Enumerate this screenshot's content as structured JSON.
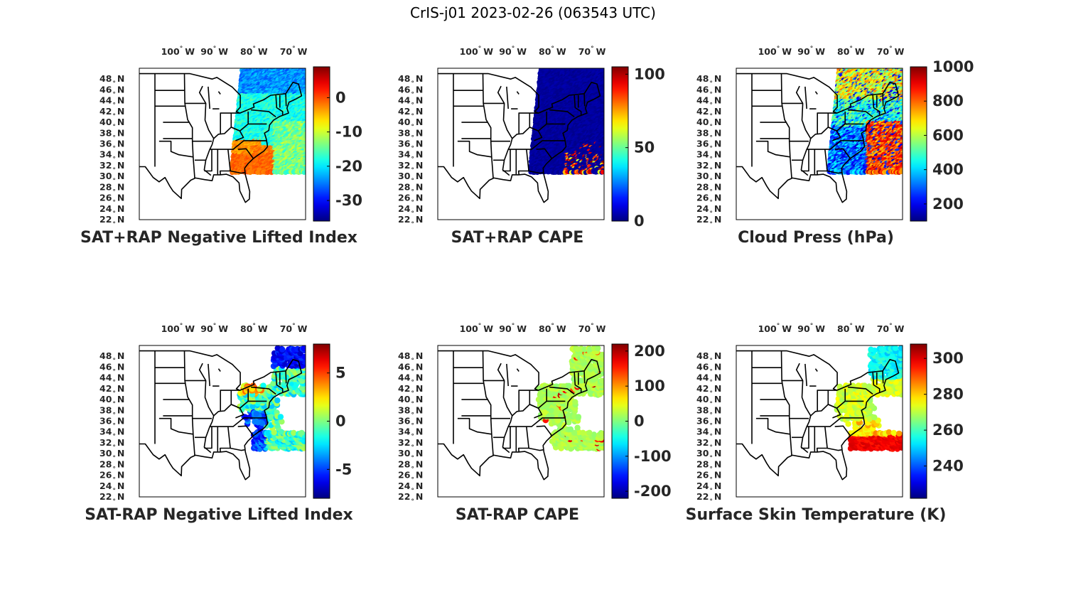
{
  "title": "CrIS-j01 2023-02-26 (063543 UTC)",
  "lon_ticks": [
    {
      "value": -100,
      "label": "100",
      "hem": "W"
    },
    {
      "value": -90,
      "label": "90",
      "hem": "W"
    },
    {
      "value": -80,
      "label": "80",
      "hem": "W"
    },
    {
      "value": -70,
      "label": "70",
      "hem": "W"
    }
  ],
  "lat_ticks": [
    {
      "value": 48,
      "label": "48",
      "hem": "N"
    },
    {
      "value": 46,
      "label": "46",
      "hem": "N"
    },
    {
      "value": 44,
      "label": "44",
      "hem": "N"
    },
    {
      "value": 42,
      "label": "42",
      "hem": "N"
    },
    {
      "value": 40,
      "label": "40",
      "hem": "N"
    },
    {
      "value": 38,
      "label": "38",
      "hem": "N"
    },
    {
      "value": 36,
      "label": "36",
      "hem": "N"
    },
    {
      "value": 34,
      "label": "34",
      "hem": "N"
    },
    {
      "value": 32,
      "label": "32",
      "hem": "N"
    },
    {
      "value": 30,
      "label": "30",
      "hem": "N"
    },
    {
      "value": 28,
      "label": "28",
      "hem": "N"
    },
    {
      "value": 26,
      "label": "26",
      "hem": "N"
    },
    {
      "value": 24,
      "label": "24",
      "hem": "N"
    },
    {
      "value": 22,
      "label": "22",
      "hem": "N"
    }
  ],
  "map_extent": {
    "lon": [
      -108,
      -66
    ],
    "lat": [
      22,
      50
    ]
  },
  "colormap": "jet",
  "panels": [
    {
      "title": "SAT+RAP Negative Lifted Index",
      "clim": [
        -36,
        9
      ],
      "cbar_ticks": [
        "0",
        "-10",
        "-20",
        "-30"
      ],
      "cbar_values": [
        0,
        -10,
        -20,
        -30
      ],
      "pattern": "nli_sum"
    },
    {
      "title": "SAT+RAP CAPE",
      "clim": [
        0,
        105
      ],
      "cbar_ticks": [
        "100",
        "50",
        "0"
      ],
      "cbar_values": [
        100,
        50,
        0
      ],
      "pattern": "cape_sum"
    },
    {
      "title": "Cloud Press (hPa)",
      "clim": [
        100,
        1000
      ],
      "cbar_ticks": [
        "1000",
        "800",
        "600",
        "400",
        "200"
      ],
      "cbar_values": [
        1000,
        800,
        600,
        400,
        200
      ],
      "pattern": "cloud"
    },
    {
      "title": "SAT-RAP Negative Lifted Index",
      "clim": [
        -8,
        8
      ],
      "cbar_ticks": [
        "5",
        "0",
        "-5"
      ],
      "cbar_values": [
        5,
        0,
        -5
      ],
      "pattern": "nli_diff"
    },
    {
      "title": "SAT-RAP CAPE",
      "clim": [
        -220,
        220
      ],
      "cbar_ticks": [
        "200",
        "100",
        "0",
        "-100",
        "-200"
      ],
      "cbar_values": [
        200,
        100,
        0,
        -100,
        -200
      ],
      "pattern": "cape_diff"
    },
    {
      "title": "Surface Skin Temperature (K)",
      "clim": [
        222,
        308
      ],
      "cbar_ticks": [
        "300",
        "280",
        "260",
        "240"
      ],
      "cbar_values": [
        300,
        280,
        260,
        240
      ],
      "pattern": "skin"
    }
  ]
}
